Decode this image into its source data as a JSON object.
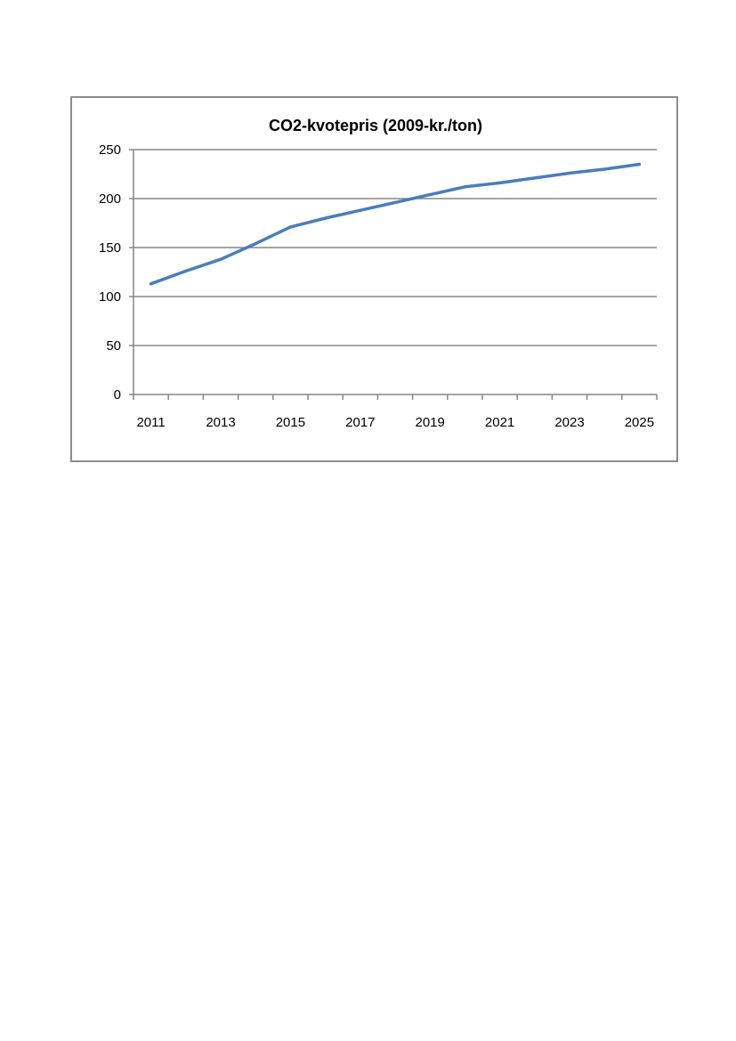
{
  "chart_data": {
    "type": "line",
    "title": "CO2-kvotepris (2009-kr./ton)",
    "xlabel": "",
    "ylabel": "",
    "x": [
      2011,
      2012,
      2013,
      2014,
      2015,
      2016,
      2017,
      2018,
      2019,
      2020,
      2021,
      2022,
      2023,
      2024,
      2025
    ],
    "series": [
      {
        "values": [
          113,
          126,
          138,
          154,
          171,
          180,
          188,
          196,
          204,
          212,
          216,
          221,
          226,
          230,
          235
        ]
      }
    ],
    "x_tick_labels": [
      "2011",
      "2013",
      "2015",
      "2017",
      "2019",
      "2021",
      "2023",
      "2025"
    ],
    "y_tick_labels": [
      "0",
      "50",
      "100",
      "150",
      "200",
      "250"
    ],
    "ylim": [
      0,
      250
    ],
    "grid": "horizontal",
    "legend": "none",
    "colors": {
      "series_line": "#4a7ebb",
      "gridline": "#868686",
      "frame_border": "#8c8c8c"
    }
  }
}
